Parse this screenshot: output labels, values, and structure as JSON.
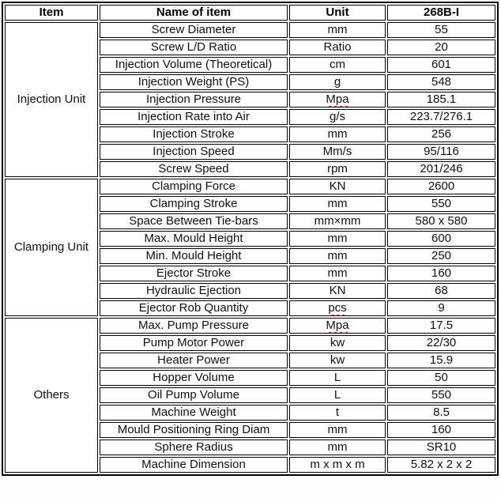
{
  "table": {
    "headers": {
      "item": "Item",
      "name": "Name of item",
      "unit": "Unit",
      "model": "268B-I"
    },
    "spellcheck_underline_color": "#cc2222",
    "border_color": "#000000",
    "sections": [
      {
        "item": "Injection Unit",
        "rows": [
          {
            "name": "Screw Diameter",
            "unit": "mm",
            "value": "55"
          },
          {
            "name": "Screw L/D Ratio",
            "unit": "Ratio",
            "value": "20"
          },
          {
            "name": "Injection Volume (Theoretical)",
            "unit": "cm",
            "value": "601"
          },
          {
            "name": "Injection Weight (PS)",
            "unit": "g",
            "value": "548"
          },
          {
            "name": "Injection Pressure",
            "unit": "Mpa",
            "value": "185.1",
            "unit_squiggle": true
          },
          {
            "name": "Injection Rate into Air",
            "unit": "g/s",
            "value": "223.7/276.1"
          },
          {
            "name": "Injection Stroke",
            "unit": "mm",
            "value": "256"
          },
          {
            "name": "Injection Speed",
            "unit": "Mm/s",
            "value": "95/116"
          },
          {
            "name": "Screw Speed",
            "unit": "rpm",
            "value": "201/246"
          }
        ]
      },
      {
        "item": "Clamping Unit",
        "rows": [
          {
            "name": "Clamping Force",
            "unit": "KN",
            "value": "2600"
          },
          {
            "name": "Clamping Stroke",
            "unit": "mm",
            "value": "550"
          },
          {
            "name": "Space Between Tie-bars",
            "unit": "mm×mm",
            "value": "580 x 580"
          },
          {
            "name": "Max. Mould Height",
            "unit": "mm",
            "value": "600"
          },
          {
            "name": "Min. Mould Height",
            "unit": "mm",
            "value": "250"
          },
          {
            "name": "Ejector Stroke",
            "unit": "mm",
            "value": "160"
          },
          {
            "name": "Hydraulic Ejection",
            "unit": "KN",
            "value": "68"
          },
          {
            "name": "Ejector Rob Quantity",
            "unit": "pcs",
            "value": "9",
            "unit_squiggle": true
          }
        ]
      },
      {
        "item": "Others",
        "rows": [
          {
            "name": "Max. Pump Pressure",
            "unit": "Mpa",
            "value": "17.5",
            "unit_squiggle": true
          },
          {
            "name": "Pump Motor Power",
            "unit": "kw",
            "value": "22/30"
          },
          {
            "name": "Heater Power",
            "unit": "kw",
            "value": "15.9"
          },
          {
            "name": "Hopper Volume",
            "unit": "L",
            "value": "50"
          },
          {
            "name": "Oil Pump Volume",
            "unit": "L",
            "value": "550"
          },
          {
            "name": "Machine Weight",
            "unit": "t",
            "value": "8.5"
          },
          {
            "name": "Mould Positioning Ring Diam",
            "unit": "mm",
            "value": "160"
          },
          {
            "name": "Sphere Radius",
            "unit": "mm",
            "value": "SR10"
          },
          {
            "name": "Machine Dimension",
            "unit": "m x m x m",
            "value": "5.82 x 2 x 2"
          }
        ]
      }
    ]
  }
}
